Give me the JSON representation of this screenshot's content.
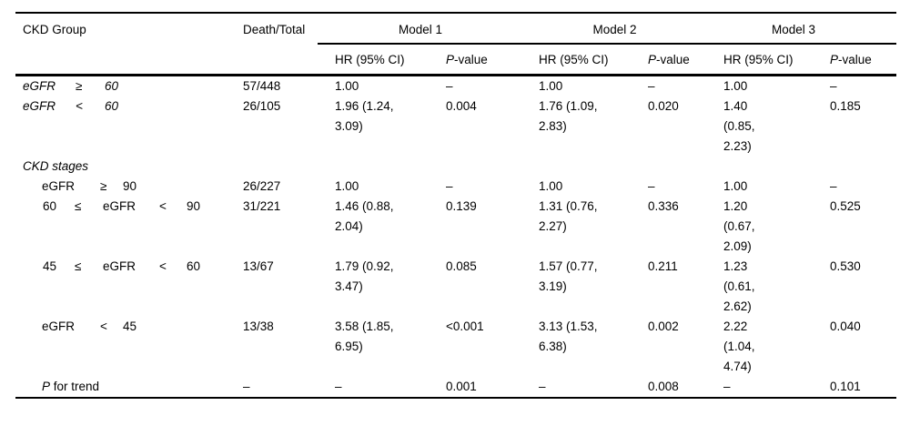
{
  "table": {
    "ckd_group_header": "CKD Group",
    "death_total_header": "Death/Total",
    "models": [
      "Model 1",
      "Model 2",
      "Model 3"
    ],
    "hr_header": "HR (95% CI)",
    "p_header_prefix": "P",
    "p_header_suffix": "-value",
    "rows": [
      {
        "type": "main",
        "label": [
          "eGFR",
          "≥",
          "60"
        ],
        "death_total": "57/448",
        "m1_hr": "1.00",
        "m1_p": "–",
        "m2_hr": "1.00",
        "m2_p": "–",
        "m3_hr": "1.00",
        "m3_p": "–"
      },
      {
        "type": "main",
        "label": [
          "eGFR",
          "<",
          "60"
        ],
        "death_total": "26/105",
        "m1_hr": [
          "1.96 (1.24,",
          "3.09)"
        ],
        "m1_p": "0.004",
        "m2_hr": [
          "1.76 (1.09,",
          "2.83)"
        ],
        "m2_p": "0.020",
        "m3_hr": [
          "1.40",
          "(0.85,",
          "2.23)"
        ],
        "m3_p": "0.185"
      },
      {
        "type": "section",
        "label_text": "CKD stages"
      },
      {
        "type": "sub3",
        "label": [
          "eGFR",
          "≥",
          "90"
        ],
        "death_total": "26/227",
        "m1_hr": "1.00",
        "m1_p": "–",
        "m2_hr": "1.00",
        "m2_p": "–",
        "m3_hr": "1.00",
        "m3_p": "–"
      },
      {
        "type": "sub5",
        "label": [
          "60",
          "≤",
          "eGFR",
          "<",
          "90"
        ],
        "death_total": "31/221",
        "m1_hr": [
          "1.46 (0.88,",
          "2.04)"
        ],
        "m1_p": "0.139",
        "m2_hr": [
          "1.31 (0.76,",
          "2.27)"
        ],
        "m2_p": "0.336",
        "m3_hr": [
          "1.20",
          "(0.67,",
          "2.09)"
        ],
        "m3_p": "0.525"
      },
      {
        "type": "sub5",
        "label": [
          "45",
          "≤",
          "eGFR",
          "<",
          "60"
        ],
        "death_total": "13/67",
        "m1_hr": [
          "1.79 (0.92,",
          "3.47)"
        ],
        "m1_p": "0.085",
        "m2_hr": [
          "1.57 (0.77,",
          "3.19)"
        ],
        "m2_p": "0.211",
        "m3_hr": [
          "1.23",
          "(0.61,",
          "2.62)"
        ],
        "m3_p": "0.530"
      },
      {
        "type": "sub3",
        "label": [
          "eGFR",
          "<",
          "45"
        ],
        "death_total": "13/38",
        "m1_hr": [
          "3.58 (1.85,",
          "6.95)"
        ],
        "m1_p": "<0.001",
        "m2_hr": [
          "3.13 (1.53,",
          "6.38)"
        ],
        "m2_p": "0.002",
        "m3_hr": [
          "2.22",
          "(1.04,",
          "4.74)"
        ],
        "m3_p": "0.040"
      },
      {
        "type": "footer",
        "label_prefix": "P",
        "label_rest": " for trend",
        "death_total": "–",
        "m1_hr": "–",
        "m1_p": "0.001",
        "m2_hr": "–",
        "m2_p": "0.008",
        "m3_hr": "–",
        "m3_p": "0.101"
      }
    ]
  }
}
